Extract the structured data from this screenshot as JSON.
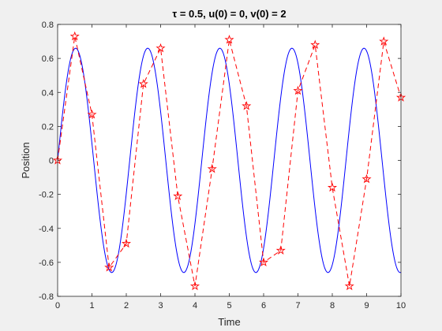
{
  "chart_data": {
    "type": "line",
    "title": "τ = 0.5,  u(0) = 0,  v(0) = 2",
    "xlabel": "Time",
    "ylabel": "Position",
    "xlim": [
      0,
      10
    ],
    "ylim": [
      -0.8,
      0.8
    ],
    "xticks": [
      "0",
      "1",
      "2",
      "3",
      "4",
      "5",
      "6",
      "7",
      "8",
      "9",
      "10"
    ],
    "yticks": [
      "-0.8",
      "-0.6",
      "-0.4",
      "-0.2",
      "0",
      "0.2",
      "0.4",
      "0.6",
      "0.8"
    ],
    "grid": false,
    "series": [
      {
        "style": "solid",
        "color": "#0000ff",
        "marker": "none",
        "amplitude": 0.66,
        "period": 2.1
      },
      {
        "style": "dashed",
        "color": "#ff0000",
        "marker": "pentagram",
        "x": [
          0,
          0.5,
          1.0,
          1.5,
          2.0,
          2.5,
          3.0,
          3.5,
          4.0,
          4.5,
          5.0,
          5.5,
          6.0,
          6.5,
          7.0,
          7.5,
          8.0,
          8.5,
          9.0,
          9.5,
          10.0
        ],
        "y": [
          0.0,
          0.73,
          0.27,
          -0.63,
          -0.49,
          0.45,
          0.66,
          -0.21,
          -0.74,
          -0.05,
          0.71,
          0.32,
          -0.6,
          -0.53,
          0.41,
          0.68,
          -0.16,
          -0.74,
          -0.11,
          0.7,
          0.37
        ]
      }
    ]
  }
}
